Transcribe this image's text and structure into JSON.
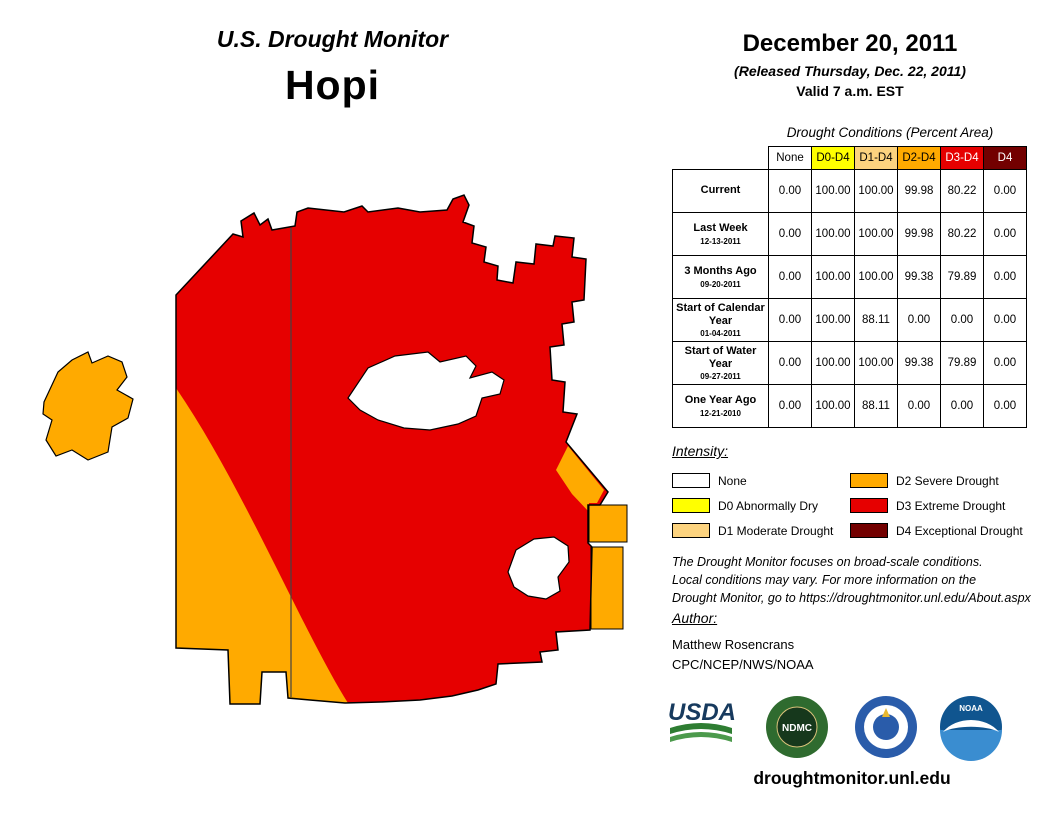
{
  "header": {
    "title": "U.S. Drought Monitor",
    "location": "Hopi",
    "date": "December 20, 2011",
    "released": "(Released Thursday, Dec. 22, 2011)",
    "valid": "Valid 7 a.m. EST"
  },
  "table": {
    "caption": "Drought Conditions (Percent Area)",
    "columns": [
      {
        "label": "None",
        "bg": "#ffffff",
        "fg": "#000000"
      },
      {
        "label": "D0-D4",
        "bg": "#ffff00",
        "fg": "#000000"
      },
      {
        "label": "D1-D4",
        "bg": "#fcd37f",
        "fg": "#000000"
      },
      {
        "label": "D2-D4",
        "bg": "#ffaa00",
        "fg": "#000000"
      },
      {
        "label": "D3-D4",
        "bg": "#e60000",
        "fg": "#ffffff"
      },
      {
        "label": "D4",
        "bg": "#730000",
        "fg": "#ffffff"
      }
    ],
    "rows": [
      {
        "label": "Current",
        "date": "",
        "values": [
          "0.00",
          "100.00",
          "100.00",
          "99.98",
          "80.22",
          "0.00"
        ]
      },
      {
        "label": "Last Week",
        "date": "12-13-2011",
        "values": [
          "0.00",
          "100.00",
          "100.00",
          "99.98",
          "80.22",
          "0.00"
        ]
      },
      {
        "label": "3 Months Ago",
        "date": "09-20-2011",
        "values": [
          "0.00",
          "100.00",
          "100.00",
          "99.38",
          "79.89",
          "0.00"
        ]
      },
      {
        "label": "Start of Calendar Year",
        "date": "01-04-2011",
        "values": [
          "0.00",
          "100.00",
          "88.11",
          "0.00",
          "0.00",
          "0.00"
        ]
      },
      {
        "label": "Start of Water Year",
        "date": "09-27-2011",
        "values": [
          "0.00",
          "100.00",
          "100.00",
          "99.38",
          "79.89",
          "0.00"
        ]
      },
      {
        "label": "One Year Ago",
        "date": "12-21-2010",
        "values": [
          "0.00",
          "100.00",
          "88.11",
          "0.00",
          "0.00",
          "0.00"
        ]
      }
    ]
  },
  "legend": {
    "title": "Intensity:",
    "items": [
      {
        "label": "None",
        "color": "#ffffff"
      },
      {
        "label": "D0 Abnormally Dry",
        "color": "#ffff00"
      },
      {
        "label": "D1 Moderate Drought",
        "color": "#fcd37f"
      },
      {
        "label": "D2 Severe Drought",
        "color": "#ffaa00"
      },
      {
        "label": "D3 Extreme Drought",
        "color": "#e60000"
      },
      {
        "label": "D4 Exceptional Drought",
        "color": "#730000"
      }
    ]
  },
  "disclaimer": {
    "line1": "The Drought Monitor focuses on broad-scale conditions.",
    "line2": "Local conditions may vary. For more information on the",
    "line3": "Drought Monitor, go to https://droughtmonitor.unl.edu/About.aspx"
  },
  "author": {
    "heading": "Author:",
    "name": "Matthew Rosencrans",
    "org": "CPC/NCEP/NWS/NOAA"
  },
  "logos": {
    "usda": "USDA",
    "ndmc": "NDMC",
    "noaa": "NOAA"
  },
  "footer": {
    "url": "droughtmonitor.unl.edu"
  },
  "map": {
    "d2_color": "#ffaa00",
    "d3_color": "#e60000",
    "none_color": "#ffffff",
    "outline_color": "#000000"
  }
}
